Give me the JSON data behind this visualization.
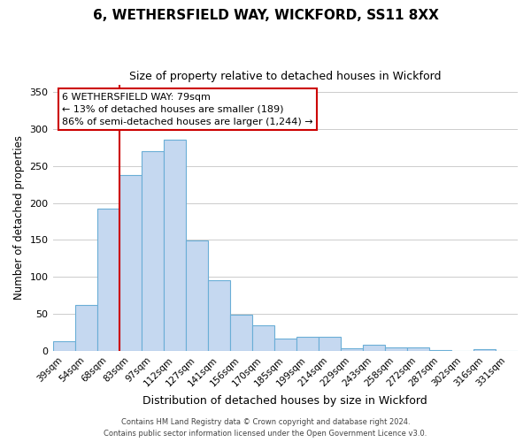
{
  "title": "6, WETHERSFIELD WAY, WICKFORD, SS11 8XX",
  "subtitle": "Size of property relative to detached houses in Wickford",
  "xlabel": "Distribution of detached houses by size in Wickford",
  "ylabel": "Number of detached properties",
  "bar_labels": [
    "39sqm",
    "54sqm",
    "68sqm",
    "83sqm",
    "97sqm",
    "112sqm",
    "127sqm",
    "141sqm",
    "156sqm",
    "170sqm",
    "185sqm",
    "199sqm",
    "214sqm",
    "229sqm",
    "243sqm",
    "258sqm",
    "272sqm",
    "287sqm",
    "302sqm",
    "316sqm",
    "331sqm"
  ],
  "bar_values": [
    13,
    62,
    192,
    238,
    270,
    285,
    149,
    96,
    49,
    35,
    17,
    19,
    19,
    4,
    8,
    5,
    5,
    1,
    0,
    2,
    0
  ],
  "bar_color": "#c5d8f0",
  "bar_edge_color": "#6aaed6",
  "vline_color": "#cc0000",
  "annotation_title": "6 WETHERSFIELD WAY: 79sqm",
  "annotation_line1": "← 13% of detached houses are smaller (189)",
  "annotation_line2": "86% of semi-detached houses are larger (1,244) →",
  "annotation_box_color": "#ffffff",
  "annotation_box_edge": "#cc0000",
  "ylim": [
    0,
    360
  ],
  "yticks": [
    0,
    50,
    100,
    150,
    200,
    250,
    300,
    350
  ],
  "footer1": "Contains HM Land Registry data © Crown copyright and database right 2024.",
  "footer2": "Contains public sector information licensed under the Open Government Licence v3.0.",
  "fig_width": 6.0,
  "fig_height": 5.0,
  "background_color": "#ffffff"
}
